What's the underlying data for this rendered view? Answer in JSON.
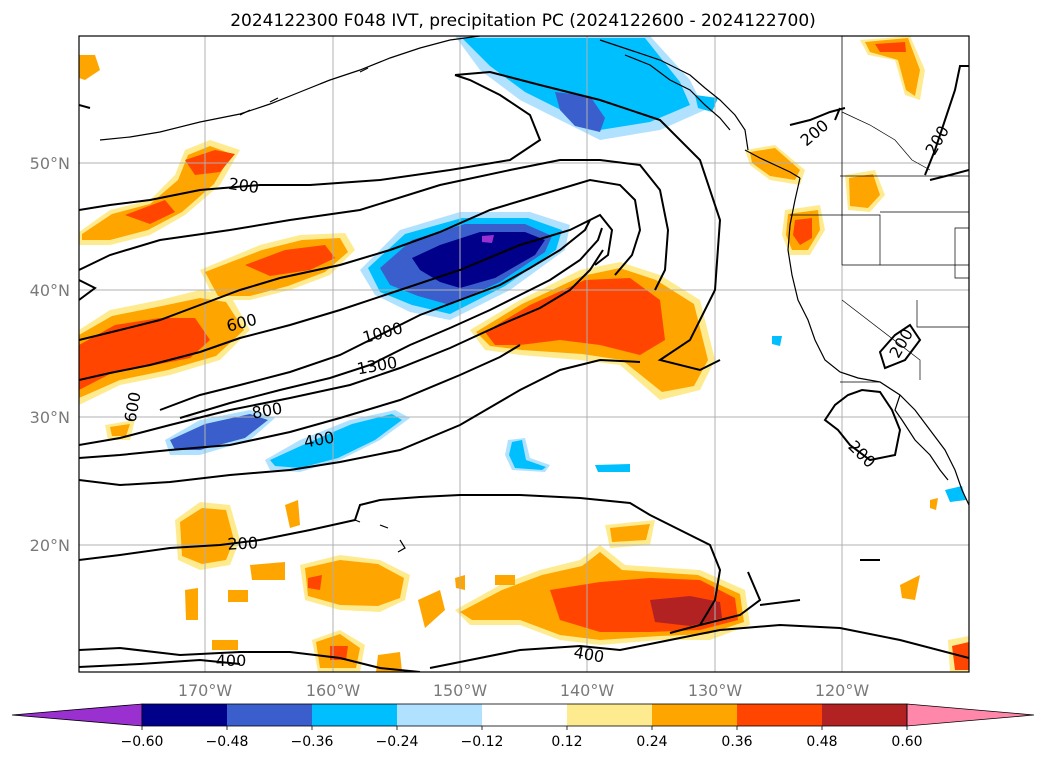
{
  "title": "2024122300 F048 IVT, precipitation PC (2024122600 - 2024122700)",
  "lat_labels": [
    "50°N",
    "40°N",
    "30°N",
    "20°N"
  ],
  "lon_labels": [
    "170°W",
    "160°W",
    "150°W",
    "140°W",
    "130°W",
    "120°W"
  ],
  "colorbar": {
    "ticks": [
      "−0.60",
      "−0.48",
      "−0.36",
      "−0.24",
      "−0.12",
      "0.12",
      "0.24",
      "0.36",
      "0.48",
      "0.60"
    ],
    "colors": [
      "#9b30d0",
      "#00008b",
      "#3a5fcd",
      "#00bfff",
      "#b0e2ff",
      "#ffffff",
      "#ffeb8f",
      "#ffa500",
      "#ff4500",
      "#b22222",
      "#ff88aa"
    ]
  },
  "contour_labels": [
    "200",
    "200",
    "200",
    "200",
    "200",
    "600",
    "1000",
    "1300",
    "800",
    "400",
    "600",
    "200",
    "400",
    "400"
  ],
  "colors": {
    "coast": "#000000",
    "grid": "#b0b0b0"
  }
}
